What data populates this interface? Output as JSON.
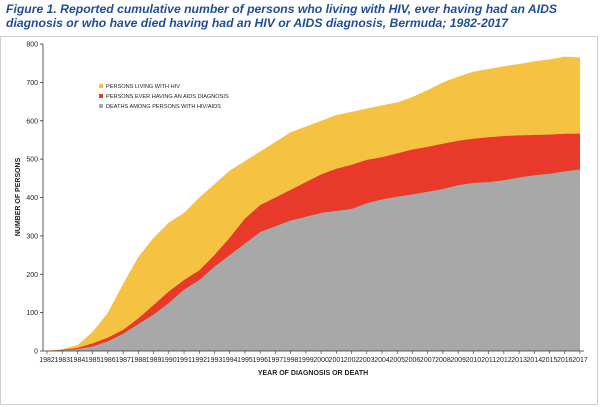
{
  "figure": {
    "title": "Figure 1. Reported cumulative number of persons who living with HIV, ever having had an AIDS diagnosis or who have died having had an HIV or AIDS diagnosis, Bermuda; 1982-2017"
  },
  "chart_data": {
    "type": "area",
    "title": "Figure 1. Reported cumulative number of persons who living with HIV, ever having had an AIDS diagnosis or who have died having had an HIV or AIDS diagnosis, Bermuda; 1982-2017",
    "xlabel": "YEAR OF DIAGNOSIS OR DEATH",
    "ylabel": "NUMBER OF PERSONS",
    "ylim": [
      0,
      800
    ],
    "yticks": [
      0,
      100,
      200,
      300,
      400,
      500,
      600,
      700,
      800
    ],
    "grid": false,
    "legend_position": "upper-left",
    "categories": [
      "1982",
      "1983",
      "1984",
      "1985",
      "1986",
      "1987",
      "1988",
      "1989",
      "1990",
      "1991",
      "1992",
      "1993",
      "1994",
      "1995",
      "1996",
      "1997",
      "1998",
      "1999",
      "2000",
      "2001",
      "2002",
      "2003",
      "2004",
      "2005",
      "2006",
      "2007",
      "2008",
      "2009",
      "2010",
      "2011",
      "2012",
      "2013",
      "2014",
      "2015",
      "2016",
      "2017"
    ],
    "series": [
      {
        "name": "PERSONS LIVING WITH HIV",
        "color": "#f5c242",
        "values": [
          1,
          5,
          15,
          50,
          100,
          175,
          245,
          295,
          335,
          360,
          400,
          435,
          470,
          495,
          520,
          545,
          570,
          585,
          600,
          615,
          623,
          632,
          640,
          648,
          662,
          680,
          700,
          715,
          728,
          735,
          742,
          748,
          755,
          760,
          767,
          765
        ]
      },
      {
        "name": "PERSONS EVER HAVING AN AIDS DIAGNOSIS",
        "color": "#e8392a",
        "values": [
          0,
          3,
          8,
          20,
          35,
          55,
          85,
          120,
          155,
          185,
          210,
          250,
          295,
          345,
          380,
          400,
          420,
          440,
          460,
          475,
          485,
          498,
          505,
          515,
          525,
          532,
          540,
          548,
          553,
          557,
          560,
          562,
          563,
          564,
          566,
          566
        ]
      },
      {
        "name": "DEATHS AMONG PERSONS WITH HIV/AIDS",
        "color": "#a8a8a8",
        "values": [
          0,
          2,
          5,
          12,
          25,
          45,
          70,
          95,
          125,
          160,
          185,
          220,
          250,
          280,
          310,
          325,
          340,
          350,
          360,
          365,
          370,
          385,
          395,
          402,
          408,
          415,
          422,
          432,
          438,
          440,
          445,
          452,
          458,
          462,
          468,
          473
        ]
      }
    ]
  }
}
